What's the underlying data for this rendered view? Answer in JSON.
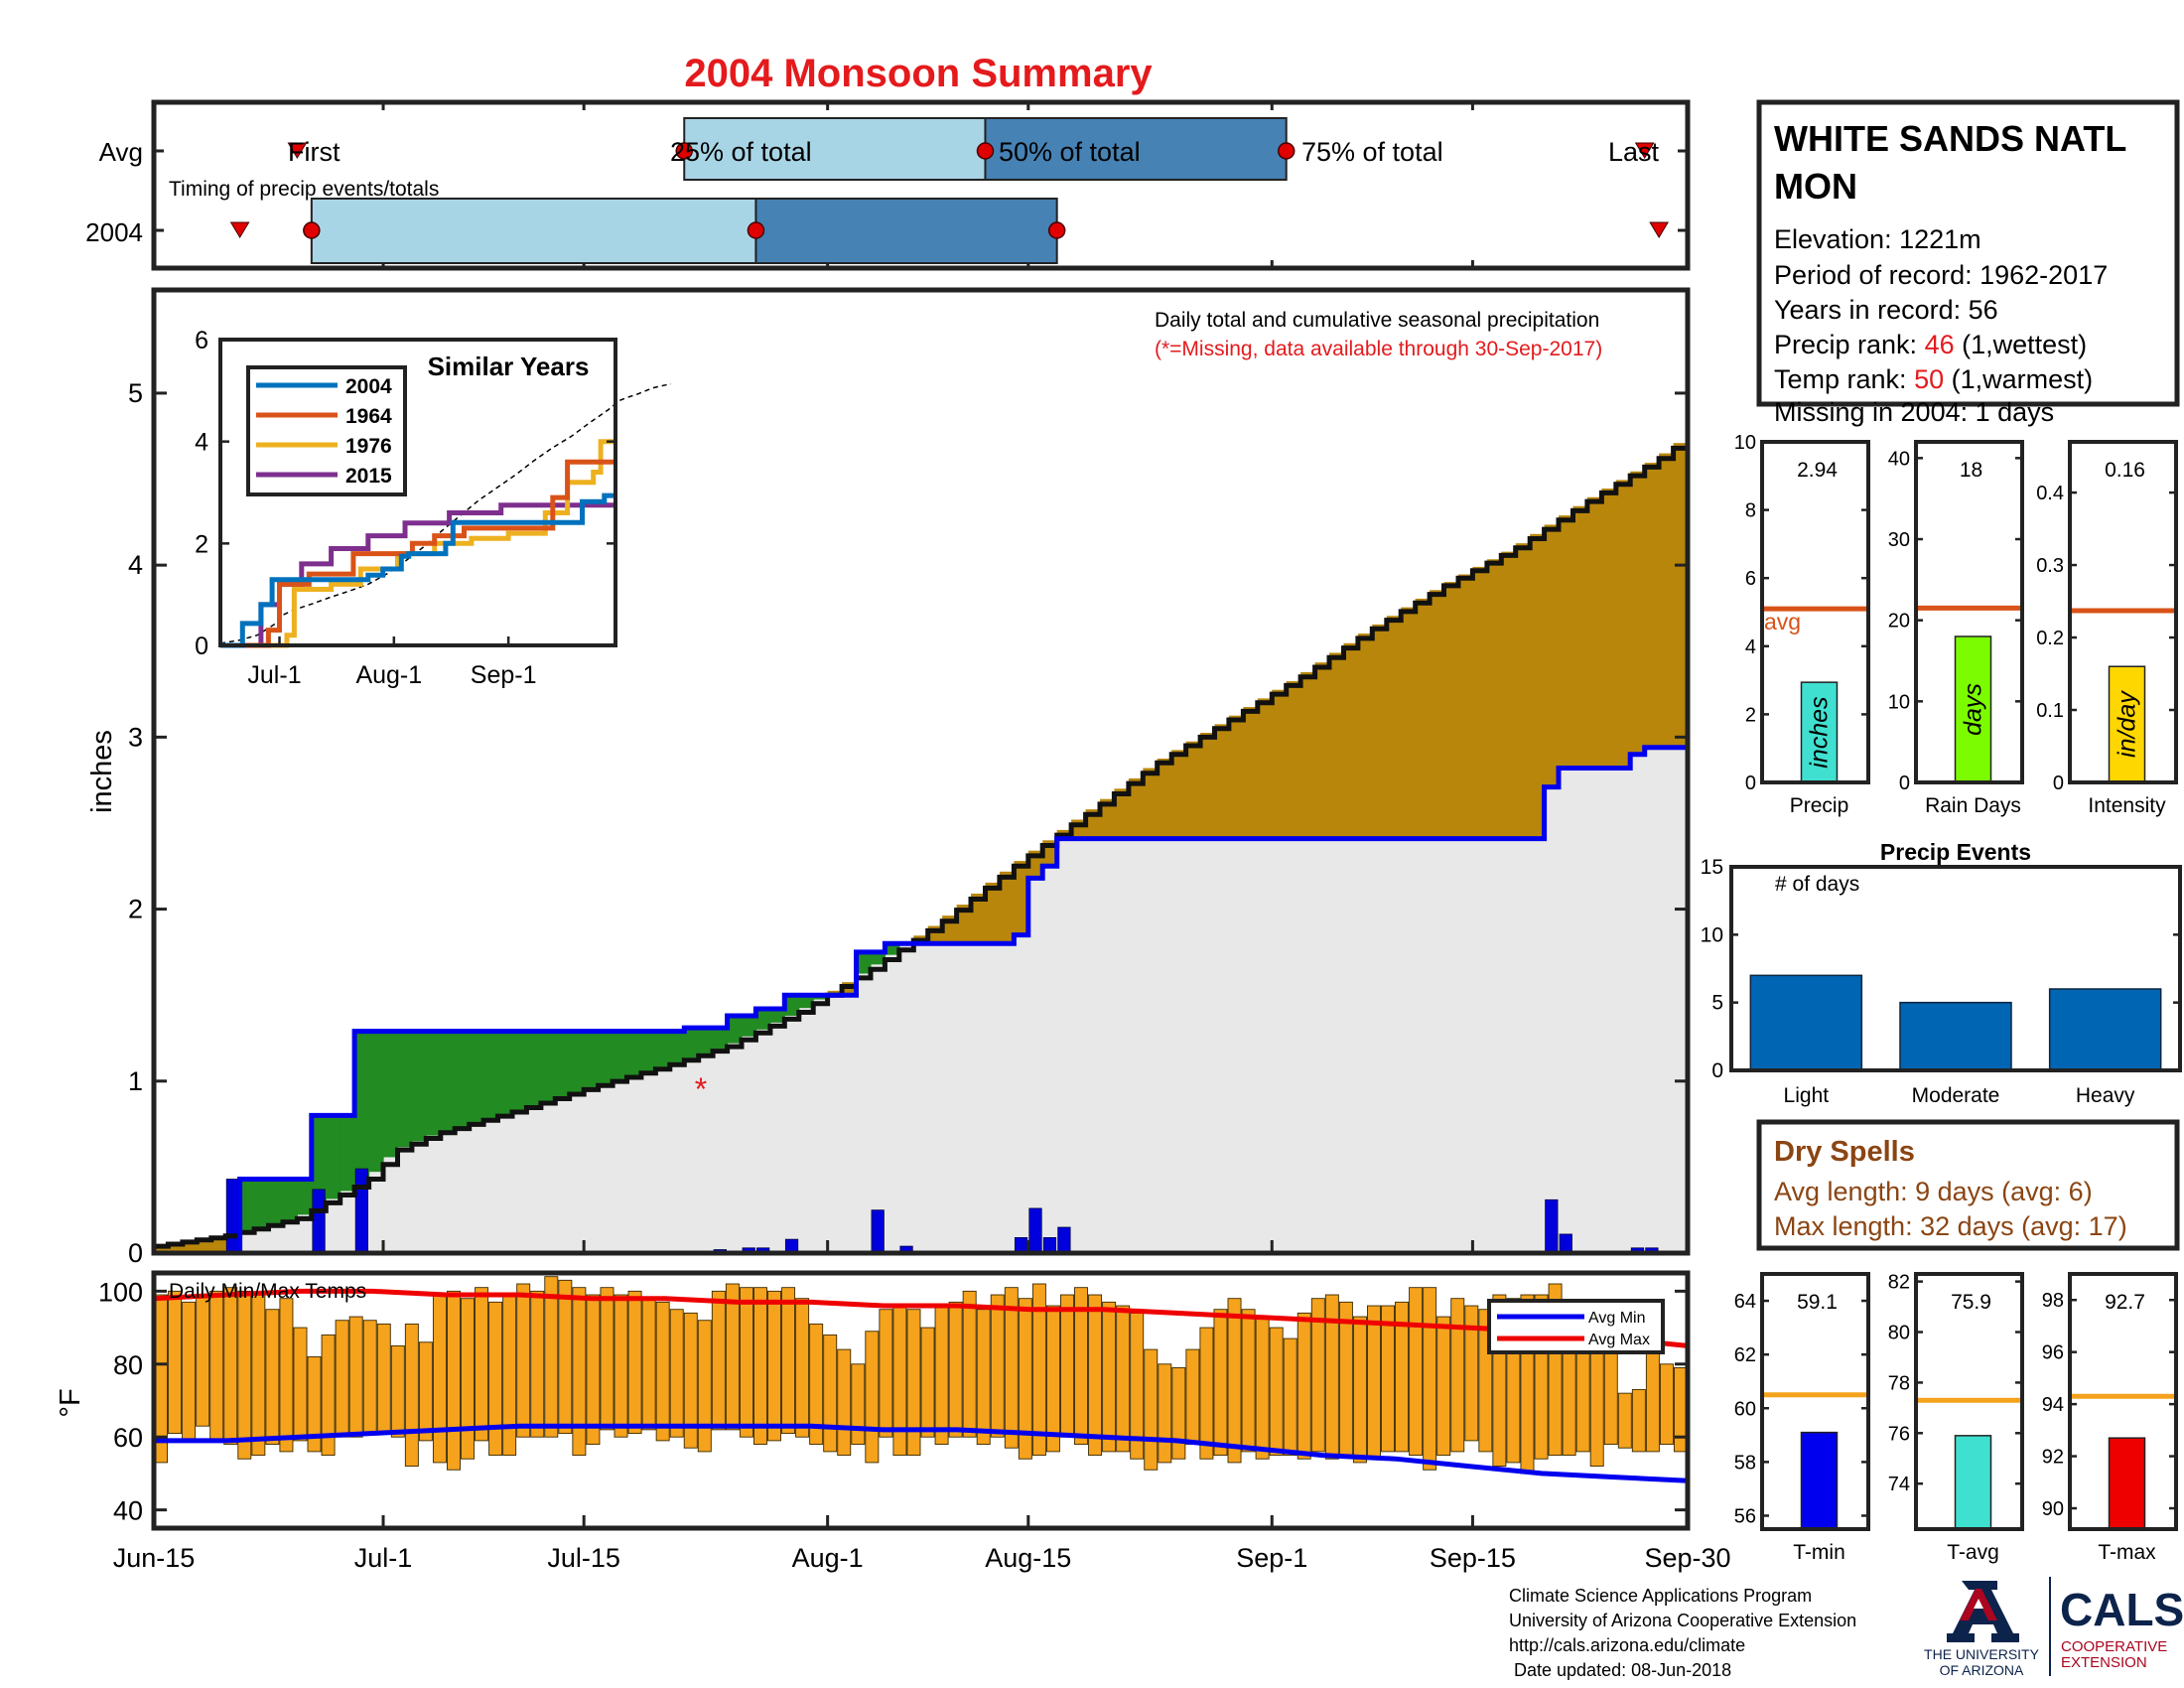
{
  "title": "2004 Monsoon Summary",
  "colors": {
    "title": "#e41a1c",
    "light_blue": "#a8d5e6",
    "mid_blue": "#4682b4",
    "brown": "#b8860b",
    "green": "#228b22",
    "grey": "#e8e8e8",
    "avg_line_red": "#d95319",
    "orange": "#f5a21d",
    "bar_blue": "#0066b3"
  },
  "timing": {
    "caption": "Timing of precip events/totals",
    "rows": [
      "Avg",
      "2004"
    ],
    "labels": {
      "first": "First",
      "q25": "25% of total",
      "q50": "50% of total",
      "q75": "75% of total",
      "last": "Last"
    },
    "avg": {
      "first": "Jun-25",
      "q25": "Jul-22",
      "q50": "Aug-12",
      "q75": "Sep-2",
      "last": "Sep-27"
    },
    "year": {
      "first": "Jun-21",
      "q25": "Jun-26",
      "q50": "Jul-27",
      "q75": "Aug-17",
      "last": "Sep-28"
    }
  },
  "station": {
    "name": "WHITE SANDS NATL MON",
    "elevation": "Elevation: 1221m",
    "period": "Period of record: 1962-2017",
    "years": "Years in record: 56",
    "precip_rank_label": "Precip rank:",
    "precip_rank": "46",
    "precip_rank_note": "(1,wettest)",
    "temp_rank_label": "Temp rank:",
    "temp_rank": "50",
    "temp_rank_note": "(1,warmest)",
    "missing": "Missing in 2004: 1 days"
  },
  "main_chart": {
    "ylabel": "inches",
    "note1": "Daily total and cumulative seasonal precipitation",
    "note2": "(*=Missing, data available through 30-Sep-2017)",
    "missing_marker": "*",
    "x_ticks": [
      "Jun-15",
      "Jul-1",
      "Jul-15",
      "Aug-1",
      "Aug-15",
      "Sep-1",
      "Sep-15",
      "Sep-30"
    ],
    "y_ticks": [
      "0",
      "1",
      "2",
      "3",
      "4",
      "5"
    ]
  },
  "chart_data": [
    {
      "type": "area",
      "title": "Daily total and cumulative seasonal precipitation",
      "ylabel": "inches",
      "x_range": [
        "Jun-15",
        "Sep-30"
      ],
      "ylim": [
        0,
        5.6
      ],
      "series": [
        {
          "name": "avg_cumulative",
          "points": [
            [
              0,
              0.04
            ],
            [
              5,
              0.1
            ],
            [
              10,
              0.2
            ],
            [
              15,
              0.43
            ],
            [
              17,
              0.6
            ],
            [
              20,
              0.7
            ],
            [
              25,
              0.82
            ],
            [
              30,
              0.95
            ],
            [
              35,
              1.07
            ],
            [
              40,
              1.2
            ],
            [
              45,
              1.4
            ],
            [
              50,
              1.65
            ],
            [
              55,
              1.93
            ],
            [
              60,
              2.25
            ],
            [
              65,
              2.55
            ],
            [
              70,
              2.85
            ],
            [
              75,
              3.1
            ],
            [
              80,
              3.35
            ],
            [
              85,
              3.63
            ],
            [
              90,
              3.88
            ],
            [
              95,
              4.1
            ],
            [
              100,
              4.37
            ],
            [
              105,
              4.62
            ],
            [
              108,
              4.8
            ],
            [
              110,
              4.86
            ],
            [
              113,
              4.93
            ],
            [
              117,
              5.05
            ],
            [
              120,
              5.1
            ],
            [
              122,
              5.13
            ]
          ]
        },
        {
          "name": "2004_cumulative",
          "points": [
            [
              0,
              0
            ],
            [
              5,
              0
            ],
            [
              6,
              0.43
            ],
            [
              11,
              0.43
            ],
            [
              11,
              0.8
            ],
            [
              14,
              0.8
            ],
            [
              14,
              1.29
            ],
            [
              34,
              1.29
            ],
            [
              37,
              1.31
            ],
            [
              40,
              1.38
            ],
            [
              42,
              1.42
            ],
            [
              44,
              1.5
            ],
            [
              49,
              1.5
            ],
            [
              49,
              1.75
            ],
            [
              51,
              1.8
            ],
            [
              59,
              1.8
            ],
            [
              60,
              1.85
            ],
            [
              61,
              2.0
            ],
            [
              61,
              2.18
            ],
            [
              62,
              2.25
            ],
            [
              63,
              2.41
            ],
            [
              97,
              2.41
            ],
            [
              97,
              2.71
            ],
            [
              98,
              2.82
            ],
            [
              103,
              2.9
            ],
            [
              104,
              2.94
            ],
            [
              107,
              2.94
            ]
          ]
        },
        {
          "name": "daily_precip",
          "points": [
            [
              5,
              0.43
            ],
            [
              11,
              0.37
            ],
            [
              14,
              0.49
            ],
            [
              39,
              0.02
            ],
            [
              41,
              0.03
            ],
            [
              42,
              0.03
            ],
            [
              44,
              0.08
            ],
            [
              50,
              0.25
            ],
            [
              52,
              0.04
            ],
            [
              60,
              0.09
            ],
            [
              61,
              0.26
            ],
            [
              62,
              0.09
            ],
            [
              63,
              0.15
            ],
            [
              97,
              0.31
            ],
            [
              98,
              0.11
            ],
            [
              103,
              0.03
            ],
            [
              104,
              0.03
            ]
          ]
        }
      ]
    },
    {
      "type": "line",
      "title": "Similar Years",
      "x_ticks": [
        "Jul-1",
        "Aug-1",
        "Sep-1"
      ],
      "ylim": [
        0,
        6
      ],
      "series": [
        {
          "name": "2004",
          "color": "#0072bd",
          "points": [
            [
              0,
              0
            ],
            [
              5,
              0
            ],
            [
              6,
              0.43
            ],
            [
              11,
              0.43
            ],
            [
              11,
              0.8
            ],
            [
              14,
              0.8
            ],
            [
              14,
              1.29
            ],
            [
              34,
              1.29
            ],
            [
              40,
              1.38
            ],
            [
              44,
              1.5
            ],
            [
              49,
              1.5
            ],
            [
              49,
              1.75
            ],
            [
              51,
              1.8
            ],
            [
              59,
              1.8
            ],
            [
              61,
              2.0
            ],
            [
              63,
              2.41
            ],
            [
              97,
              2.41
            ],
            [
              98,
              2.82
            ],
            [
              104,
              2.94
            ],
            [
              107,
              2.94
            ]
          ]
        },
        {
          "name": "1964",
          "color": "#d95319",
          "points": [
            [
              0,
              0
            ],
            [
              10,
              0
            ],
            [
              13,
              0.3
            ],
            [
              16,
              1.2
            ],
            [
              24,
              1.4
            ],
            [
              36,
              1.8
            ],
            [
              52,
              2.0
            ],
            [
              58,
              2.15
            ],
            [
              66,
              2.3
            ],
            [
              80,
              2.3
            ],
            [
              90,
              2.9
            ],
            [
              94,
              3.6
            ],
            [
              107,
              3.6
            ]
          ]
        },
        {
          "name": "1976",
          "color": "#edb120",
          "points": [
            [
              0,
              0
            ],
            [
              17,
              0
            ],
            [
              18,
              0.2
            ],
            [
              20,
              1.1
            ],
            [
              30,
              1.2
            ],
            [
              38,
              1.5
            ],
            [
              48,
              1.8
            ],
            [
              58,
              2.0
            ],
            [
              68,
              2.1
            ],
            [
              78,
              2.2
            ],
            [
              88,
              2.6
            ],
            [
              94,
              3.2
            ],
            [
              101,
              3.4
            ],
            [
              103,
              4.0
            ],
            [
              107,
              4.0
            ]
          ]
        },
        {
          "name": "2015",
          "color": "#7e2f8e",
          "points": [
            [
              0,
              0
            ],
            [
              8,
              0
            ],
            [
              11,
              0.8
            ],
            [
              16,
              1.2
            ],
            [
              22,
              1.6
            ],
            [
              30,
              1.9
            ],
            [
              40,
              2.15
            ],
            [
              50,
              2.4
            ],
            [
              62,
              2.6
            ],
            [
              76,
              2.75
            ],
            [
              92,
              2.75
            ],
            [
              107,
              2.75
            ]
          ]
        }
      ]
    },
    {
      "type": "bar",
      "title": "Precip",
      "values": [
        2.94
      ],
      "value_label": "2.94",
      "avg": 5.1,
      "avg_label": "avg",
      "bar_label": "inches",
      "ylim": [
        0,
        10
      ],
      "y_ticks": [
        "0",
        "2",
        "4",
        "6",
        "8",
        "10"
      ]
    },
    {
      "type": "bar",
      "title": "Rain Days",
      "values": [
        18
      ],
      "value_label": "18",
      "avg": 21.5,
      "bar_label": "days",
      "ylim": [
        0,
        42
      ],
      "y_ticks": [
        "0",
        "10",
        "20",
        "30",
        "40"
      ]
    },
    {
      "type": "bar",
      "title": "Intensity",
      "values": [
        0.16
      ],
      "value_label": "0.16",
      "avg": 0.237,
      "bar_label": "in/day",
      "ylim": [
        0,
        0.47
      ],
      "y_ticks": [
        "0",
        "0.1",
        "0.2",
        "0.3",
        "0.4"
      ]
    },
    {
      "type": "bar",
      "title": "Precip Events",
      "ylabel": "# of days",
      "categories": [
        "Light",
        "Moderate",
        "Heavy"
      ],
      "values": [
        7,
        5,
        6
      ],
      "ylim": [
        0,
        15
      ],
      "y_ticks": [
        "0",
        "5",
        "10",
        "15"
      ]
    },
    {
      "type": "bar",
      "title": "Daily Min/Max Temps",
      "ylabel": "°F",
      "ylim": [
        35,
        105
      ],
      "y_ticks": [
        "40",
        "60",
        "80",
        "100"
      ],
      "legend": [
        "Avg Min",
        "Avg Max"
      ],
      "legend_position": "top-right",
      "daily_max": [
        99,
        100,
        97,
        99,
        100,
        101,
        100,
        99,
        95,
        98,
        90,
        82,
        88,
        92,
        93,
        92,
        91,
        85,
        91,
        86,
        99,
        100,
        98,
        101,
        97,
        99,
        102,
        100,
        104,
        103,
        101,
        99,
        101,
        99,
        100,
        98,
        97,
        95,
        94,
        92,
        100,
        102,
        101,
        101,
        100,
        101,
        98,
        91,
        88,
        84,
        80,
        89,
        95,
        96,
        95,
        90,
        96,
        97,
        100,
        95,
        99,
        101,
        98,
        102,
        96,
        99,
        101,
        99,
        97,
        96,
        94,
        84,
        80,
        79,
        84,
        90,
        95,
        98,
        95,
        93,
        90,
        87,
        94,
        98,
        99,
        97,
        93,
        96,
        96,
        97,
        101,
        101,
        93,
        98,
        96,
        95,
        99,
        98,
        99,
        99,
        102,
        94,
        96,
        89,
        84,
        72,
        73,
        86,
        80,
        79
      ],
      "daily_min": [
        53,
        61,
        59,
        63,
        59,
        58,
        54,
        55,
        58,
        56,
        59,
        56,
        55,
        60,
        60,
        61,
        61,
        60,
        52,
        59,
        53,
        51,
        54,
        59,
        55,
        55,
        60,
        60,
        60,
        61,
        55,
        58,
        62,
        60,
        61,
        62,
        59,
        60,
        57,
        56,
        62,
        62,
        60,
        58,
        59,
        61,
        60,
        58,
        56,
        55,
        58,
        53,
        60,
        55,
        55,
        60,
        58,
        60,
        60,
        58,
        60,
        57,
        54,
        55,
        56,
        60,
        58,
        55,
        56,
        56,
        54,
        51,
        53,
        54,
        58,
        54,
        55,
        53,
        56,
        54,
        55,
        55,
        54,
        56,
        54,
        55,
        53,
        54,
        56,
        56,
        55,
        51,
        55,
        56,
        59,
        56,
        52,
        53,
        50,
        54,
        55,
        55,
        56,
        52,
        58,
        57,
        56,
        56,
        58,
        56
      ],
      "avg_min": [
        59,
        59,
        60,
        61,
        62,
        63,
        63,
        63,
        63,
        63,
        62,
        62,
        61,
        60,
        59,
        57,
        55,
        54,
        52,
        50,
        49,
        48
      ],
      "avg_max": [
        98,
        99,
        100,
        100,
        99,
        99,
        98,
        98,
        97,
        97,
        96,
        96,
        95,
        95,
        94,
        93,
        92,
        91,
        90,
        89,
        87,
        85
      ]
    },
    {
      "type": "bar",
      "title": "T-min",
      "values": [
        59.1
      ],
      "value_label": "59.1",
      "avg": 60.5,
      "ylim": [
        55.5,
        65
      ],
      "y_ticks": [
        "56",
        "58",
        "60",
        "62",
        "64"
      ]
    },
    {
      "type": "bar",
      "title": "T-avg",
      "values": [
        75.9
      ],
      "value_label": "75.9",
      "avg": 77.3,
      "ylim": [
        72.2,
        82.3
      ],
      "y_ticks": [
        "74",
        "76",
        "78",
        "80",
        "82"
      ]
    },
    {
      "type": "bar",
      "title": "T-max",
      "values": [
        92.7
      ],
      "value_label": "92.7",
      "avg": 94.3,
      "ylim": [
        89.2,
        99
      ],
      "y_ticks": [
        "90",
        "92",
        "94",
        "96",
        "98"
      ]
    }
  ],
  "dry_spells": {
    "title": "Dry Spells",
    "avg_length": "Avg length: 9 days (avg: 6)",
    "max_length": "Max length: 32 days (avg: 17)"
  },
  "footer": {
    "line1": "Climate Science Applications Program",
    "line2": "University of Arizona Cooperative Extension",
    "line3": "http://cals.arizona.edu/climate",
    "line4": " Date updated: 08-Jun-2018",
    "ua_logo_text_1": "THE UNIVERSITY",
    "ua_logo_text_2": "OF ARIZONA",
    "cals_logo": "CALS",
    "cals_sub_1": "COOPERATIVE",
    "cals_sub_2": "EXTENSION"
  }
}
